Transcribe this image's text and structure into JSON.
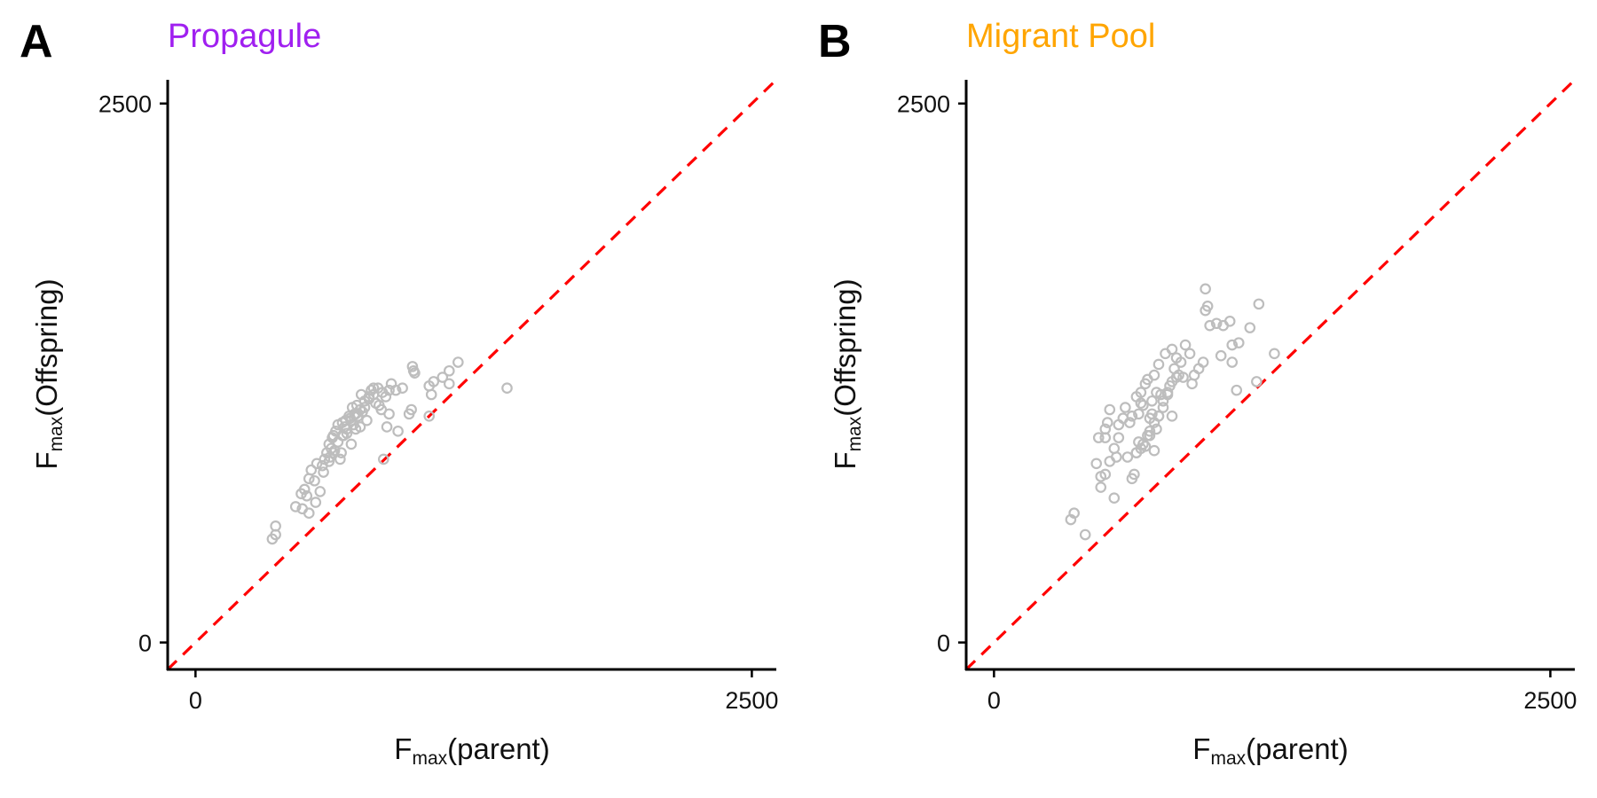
{
  "colors": {
    "point": "#bdbdbd",
    "reference_line": "#ff0000",
    "propagule_title": "#a020f0",
    "migrant_title": "#ffa500",
    "axis": "#000000"
  },
  "chart_data": [
    {
      "type": "scatter",
      "panel": "A",
      "title": "Propagule",
      "xlabel": {
        "main": "F",
        "sub": "max",
        "paren": "parent"
      },
      "ylabel": {
        "main": "F",
        "sub": "max",
        "paren": "Offspring"
      },
      "xlim": [
        -125,
        2610
      ],
      "ylim": [
        -125,
        2610
      ],
      "xticks": [
        0,
        2500
      ],
      "yticks": [
        0,
        2500
      ],
      "reference_line": {
        "slope": 1,
        "intercept": 0,
        "style": "dashed"
      },
      "grid": false,
      "x": [
        345,
        360,
        360,
        450,
        475,
        490,
        500,
        510,
        520,
        535,
        545,
        560,
        575,
        580,
        590,
        600,
        605,
        610,
        615,
        620,
        625,
        630,
        640,
        650,
        655,
        660,
        665,
        670,
        675,
        680,
        690,
        695,
        700,
        705,
        710,
        715,
        720,
        725,
        730,
        740,
        745,
        750,
        760,
        770,
        780,
        790,
        800,
        810,
        825,
        835,
        845,
        855,
        860,
        870,
        880,
        900,
        910,
        930,
        960,
        970,
        975,
        980,
        985,
        1050,
        1050,
        1060,
        1070,
        1110,
        1140,
        1140,
        1180,
        1400,
        480,
        510,
        540,
        570,
        600,
        620,
        640,
        660,
        680,
        700,
        720,
        740,
        760,
        780,
        800,
        820,
        840,
        870
      ],
      "y": [
        480,
        500,
        540,
        630,
        690,
        710,
        680,
        760,
        800,
        750,
        830,
        700,
        790,
        850,
        880,
        920,
        860,
        900,
        950,
        960,
        890,
        980,
        1010,
        850,
        880,
        1020,
        960,
        1000,
        1030,
        970,
        1050,
        1040,
        920,
        1090,
        1010,
        1060,
        990,
        1100,
        1050,
        1000,
        1150,
        1070,
        1090,
        1030,
        1130,
        1170,
        1180,
        1110,
        1100,
        1080,
        850,
        1140,
        1000,
        1060,
        1200,
        1170,
        980,
        1180,
        1060,
        1080,
        1280,
        1260,
        1250,
        1050,
        1190,
        1150,
        1210,
        1230,
        1200,
        1260,
        1300,
        1180,
        620,
        600,
        650,
        820,
        840,
        880,
        930,
        960,
        990,
        1030,
        1060,
        1080,
        1120,
        1140,
        1150,
        1180,
        1160,
        1170
      ]
    },
    {
      "type": "scatter",
      "panel": "B",
      "title": "Migrant Pool",
      "xlabel": {
        "main": "F",
        "sub": "max",
        "paren": "parent"
      },
      "ylabel": {
        "main": "F",
        "sub": "max",
        "paren": "Offspring"
      },
      "xlim": [
        -125,
        2610
      ],
      "ylim": [
        -125,
        2610
      ],
      "xticks": [
        0,
        2500
      ],
      "yticks": [
        0,
        2500
      ],
      "reference_line": {
        "slope": 1,
        "intercept": 0,
        "style": "dashed"
      },
      "grid": false,
      "x": [
        345,
        360,
        410,
        460,
        470,
        480,
        500,
        500,
        510,
        520,
        540,
        550,
        560,
        580,
        590,
        600,
        610,
        620,
        630,
        640,
        640,
        650,
        650,
        660,
        660,
        670,
        670,
        680,
        690,
        690,
        700,
        700,
        710,
        710,
        720,
        720,
        730,
        730,
        740,
        740,
        750,
        760,
        770,
        780,
        790,
        800,
        800,
        810,
        820,
        830,
        840,
        850,
        860,
        880,
        890,
        900,
        920,
        940,
        950,
        950,
        960,
        970,
        1000,
        1020,
        1030,
        1060,
        1070,
        1070,
        1090,
        1100,
        1150,
        1180,
        1190,
        1260,
        620,
        640,
        660,
        680,
        700,
        720,
        740,
        760,
        780,
        800,
        820,
        480,
        500,
        520,
        540,
        560
      ],
      "y": [
        570,
        600,
        500,
        830,
        950,
        770,
        950,
        990,
        1020,
        1080,
        670,
        860,
        1010,
        1040,
        1090,
        860,
        1020,
        1050,
        780,
        880,
        1140,
        930,
        1060,
        1110,
        1160,
        920,
        1100,
        1200,
        960,
        1220,
        960,
        1040,
        1060,
        1120,
        890,
        1240,
        990,
        1160,
        1050,
        1290,
        1150,
        1090,
        1340,
        1160,
        1190,
        1360,
        1050,
        1270,
        1320,
        1240,
        1300,
        1230,
        1380,
        1340,
        1200,
        1240,
        1270,
        1300,
        1640,
        1540,
        1560,
        1470,
        1480,
        1330,
        1470,
        1490,
        1300,
        1380,
        1170,
        1390,
        1460,
        1210,
        1570,
        1340,
        760,
        880,
        900,
        910,
        980,
        1020,
        1050,
        1120,
        1150,
        1210,
        1230,
        720,
        780,
        840,
        900,
        950
      ]
    }
  ]
}
